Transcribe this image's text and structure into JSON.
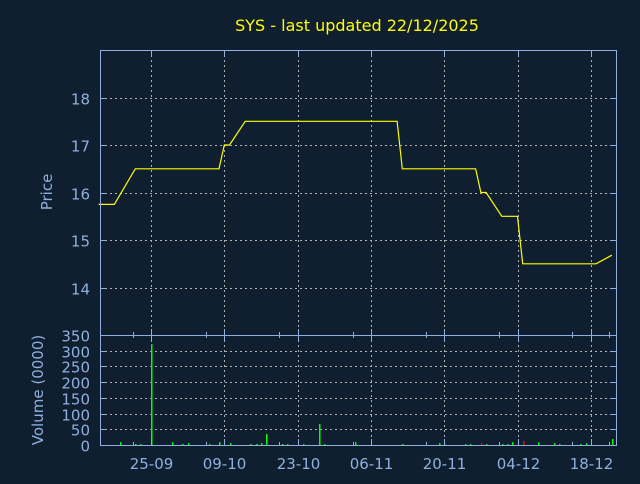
{
  "colors": {
    "background": "#0f1f30",
    "axis": "#8fb0de",
    "grid": "#b0b0b0",
    "title": "#ffff00",
    "price_line": "#ffff00",
    "volume_up": "#00ff00",
    "volume_down": "#ff0000"
  },
  "chart_data": [
    {
      "type": "line",
      "title": "SYS - last updated 22/12/2025",
      "ylabel": "Price",
      "ylim": [
        13,
        19
      ],
      "xlim": [
        "2025-09-15",
        "2025-12-23"
      ],
      "grid": true,
      "yticks": [
        14,
        15,
        16,
        17,
        18
      ],
      "xticks": [
        {
          "date": "2025-09-25",
          "label": "25-09"
        },
        {
          "date": "2025-10-09",
          "label": "09-10"
        },
        {
          "date": "2025-10-23",
          "label": "23-10"
        },
        {
          "date": "2025-11-06",
          "label": "06-11"
        },
        {
          "date": "2025-11-20",
          "label": "20-11"
        },
        {
          "date": "2025-12-04",
          "label": "04-12"
        },
        {
          "date": "2025-12-18",
          "label": "18-12"
        }
      ],
      "points": [
        [
          "2025-09-15",
          15.75
        ],
        [
          "2025-09-18",
          15.75
        ],
        [
          "2025-09-22",
          16.5
        ],
        [
          "2025-10-08",
          16.5
        ],
        [
          "2025-10-09",
          17.0
        ],
        [
          "2025-10-10",
          17.0
        ],
        [
          "2025-10-13",
          17.5
        ],
        [
          "2025-11-11",
          17.5
        ],
        [
          "2025-11-12",
          16.5
        ],
        [
          "2025-11-26",
          16.5
        ],
        [
          "2025-11-27",
          16.0
        ],
        [
          "2025-11-28",
          16.0
        ],
        [
          "2025-12-01",
          15.5
        ],
        [
          "2025-12-04",
          15.5
        ],
        [
          "2025-12-05",
          14.5
        ],
        [
          "2025-12-19",
          14.5
        ],
        [
          "2025-12-22",
          14.68
        ]
      ]
    },
    {
      "type": "bar",
      "ylabel": "Volume (0000)",
      "ylim": [
        0,
        350
      ],
      "yticks": [
        0,
        50,
        100,
        150,
        200,
        250,
        300,
        350
      ],
      "bars": [
        [
          "2025-09-19",
          9,
          "up"
        ],
        [
          "2025-09-22",
          3,
          "up"
        ],
        [
          "2025-09-23",
          3,
          "up"
        ],
        [
          "2025-09-25",
          321,
          "up"
        ],
        [
          "2025-09-29",
          9,
          "up"
        ],
        [
          "2025-10-01",
          3,
          "up"
        ],
        [
          "2025-10-02",
          6,
          "up"
        ],
        [
          "2025-10-06",
          3,
          "up"
        ],
        [
          "2025-10-08",
          9,
          "up"
        ],
        [
          "2025-10-10",
          6,
          "up"
        ],
        [
          "2025-10-14",
          3,
          "up"
        ],
        [
          "2025-10-15",
          3,
          "up"
        ],
        [
          "2025-10-16",
          6,
          "up"
        ],
        [
          "2025-10-17",
          35,
          "up"
        ],
        [
          "2025-10-20",
          3,
          "up"
        ],
        [
          "2025-10-21",
          3,
          "up"
        ],
        [
          "2025-10-24",
          3,
          "up"
        ],
        [
          "2025-10-27",
          67,
          "up"
        ],
        [
          "2025-10-28",
          3,
          "up"
        ],
        [
          "2025-11-03",
          9,
          "up"
        ],
        [
          "2025-11-12",
          3,
          "up"
        ],
        [
          "2025-11-19",
          6,
          "up"
        ],
        [
          "2025-11-20",
          3,
          "up"
        ],
        [
          "2025-11-24",
          3,
          "up"
        ],
        [
          "2025-11-25",
          3,
          "up"
        ],
        [
          "2025-11-27",
          6,
          "down"
        ],
        [
          "2025-11-28",
          3,
          "up"
        ],
        [
          "2025-12-01",
          3,
          "up"
        ],
        [
          "2025-12-02",
          3,
          "up"
        ],
        [
          "2025-12-03",
          9,
          "up"
        ],
        [
          "2025-12-05",
          13,
          "down"
        ],
        [
          "2025-12-08",
          9,
          "up"
        ],
        [
          "2025-12-11",
          6,
          "up"
        ],
        [
          "2025-12-12",
          3,
          "up"
        ],
        [
          "2025-12-16",
          3,
          "up"
        ],
        [
          "2025-12-17",
          6,
          "up"
        ],
        [
          "2025-12-22",
          19,
          "up"
        ]
      ]
    }
  ]
}
